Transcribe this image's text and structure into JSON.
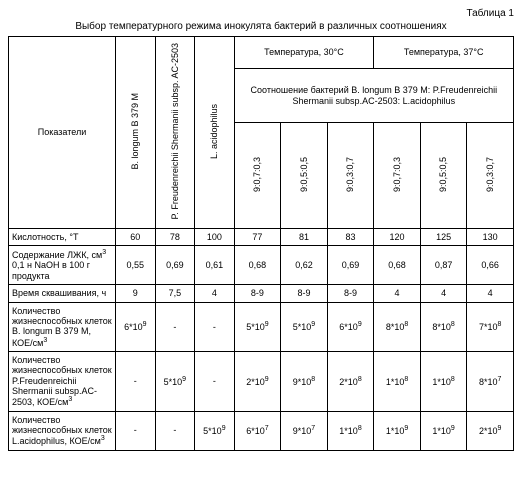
{
  "table_label": "Таблица 1",
  "title": "Выбор температурного режима инокулята бактерий в различных соотношениях",
  "header": {
    "indicators": "Показатели",
    "bact1": "B. longum B 379 M",
    "bact2": "P. Freudenreichii Shermanii subsp. AC-2503",
    "bact3": "L. acidophilus",
    "temp30": "Температура, 30°C",
    "temp37": "Температура, 37°C",
    "ratio_caption": "Соотношение бактерий B. longum B 379 M: P.Freudenreichii Shermanii subsp.AC-2503: L.acidophilus",
    "ratios": [
      "9:0,7:0,3",
      "9:0,5:0,5",
      "9:0,3:0,7",
      "9:0,7:0,3",
      "9:0,5:0,5",
      "9:0,3:0,7"
    ]
  },
  "rows": [
    {
      "label": "Кислотность, °T",
      "v": [
        "60",
        "78",
        "100",
        "77",
        "81",
        "83",
        "120",
        "125",
        "130"
      ]
    },
    {
      "label": "Содержание ЛЖК, см³ 0,1 н NaOH в 100 г продукта",
      "v": [
        "0,55",
        "0,69",
        "0,61",
        "0,68",
        "0,62",
        "0,69",
        "0,68",
        "0,87",
        "0,66"
      ]
    },
    {
      "label": "Время сквашивания, ч",
      "v": [
        "9",
        "7,5",
        "4",
        "8-9",
        "8-9",
        "8-9",
        "4",
        "4",
        "4"
      ]
    },
    {
      "label": "Количество жизнеспособных клеток B. longum B 379 M, КОЕ/см³",
      "v": [
        "6*10⁹",
        "-",
        "-",
        "5*10⁹",
        "5*10⁹",
        "6*10⁹",
        "8*10⁸",
        "8*10⁸",
        "7*10⁸"
      ]
    },
    {
      "label": "Количество жизнеспособных клеток P.Freudenreichii Shermanii subsp.AC-2503, КОЕ/см³",
      "v": [
        "-",
        "5*10⁹",
        "-",
        "2*10⁹",
        "9*10⁸",
        "2*10⁸",
        "1*10⁸",
        "1*10⁸",
        "8*10⁷"
      ]
    },
    {
      "label": "Количество жизнеспособных клеток L.acidophilus, КОЕ/см³",
      "v": [
        "-",
        "-",
        "5*10⁹",
        "6*10⁷",
        "9*10⁷",
        "1*10⁸",
        "1*10⁹",
        "1*10⁹",
        "2*10⁹"
      ]
    }
  ]
}
